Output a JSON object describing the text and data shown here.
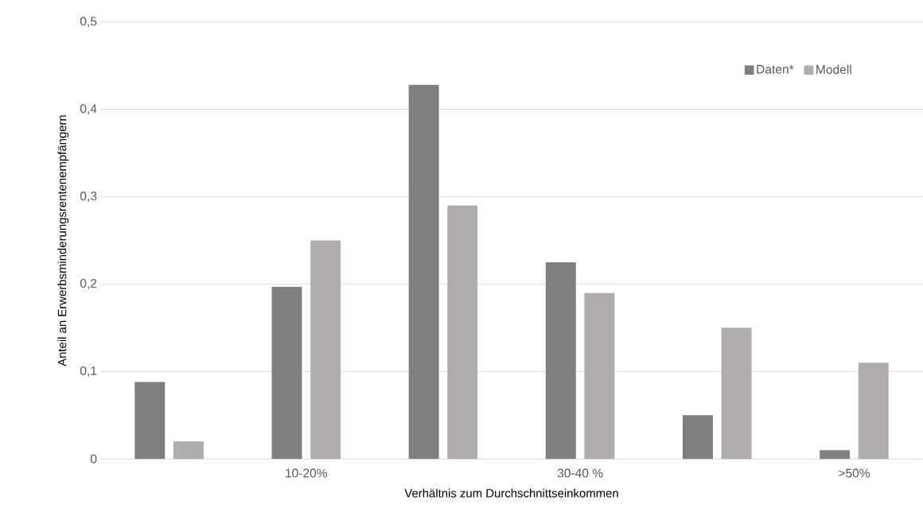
{
  "chart_data": {
    "type": "bar",
    "xlabel": "Verhältnis zum Durchschnittseinkommen",
    "ylabel": "Anteil an Erwerbsminderungsrentenempfängern",
    "categories": [
      null,
      "10-20%",
      null,
      "30-40 %",
      null,
      ">50%"
    ],
    "series": [
      {
        "name": "Daten*",
        "color": "#7f7f7f",
        "values": [
          0.088,
          0.197,
          0.428,
          0.225,
          0.05,
          0.01
        ]
      },
      {
        "name": "Modell",
        "color": "#afacab",
        "values": [
          0.02,
          0.25,
          0.29,
          0.19,
          0.15,
          0.11
        ]
      }
    ],
    "ylim": [
      0,
      0.5
    ],
    "yticks": [
      0,
      {
        "value": 0.1,
        "label": "0,1"
      },
      {
        "value": 0.2,
        "label": "0,2"
      },
      {
        "value": 0.3,
        "label": "0,3"
      },
      {
        "value": 0.4,
        "label": "0,4"
      },
      {
        "value": 0.5,
        "label": "0,5"
      }
    ],
    "grid": "y",
    "legend": "top right"
  }
}
